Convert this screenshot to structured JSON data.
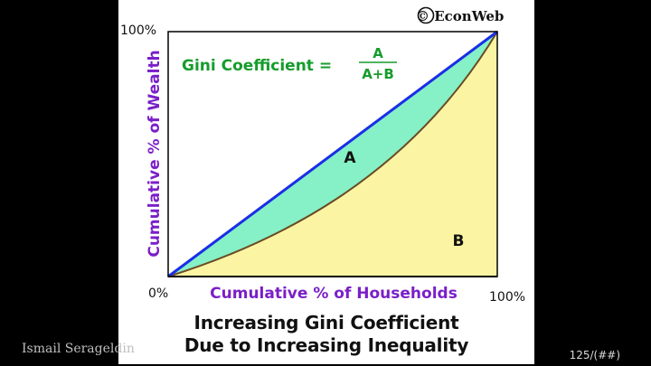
{
  "slide": {
    "author": "Ismail Serageldin",
    "slide_number": "125/(##)"
  },
  "figure": {
    "copyright": "© EconWeb",
    "formula": {
      "label": "Gini Coefficient =",
      "numerator": "A",
      "denominator": "A+B"
    },
    "area_a_label": "A",
    "area_b_label": "B",
    "y_axis_label": "Cumulative % of Wealth",
    "x_axis_label": "Cumulative % of Households",
    "y_max_label": "100%",
    "origin_label": "0%",
    "x_max_label": "100%",
    "caption_line1": "Increasing Gini Coefficient",
    "caption_line2": "Due to Increasing Inequality",
    "colors": {
      "equality_line": "#1a2ee8",
      "area_a": "#86f0c6",
      "area_b": "#fbf5a3",
      "lorenz_curve": "#6b4a24",
      "axis_labels": "#7a1fc8",
      "formula": "#169c2c"
    }
  }
}
